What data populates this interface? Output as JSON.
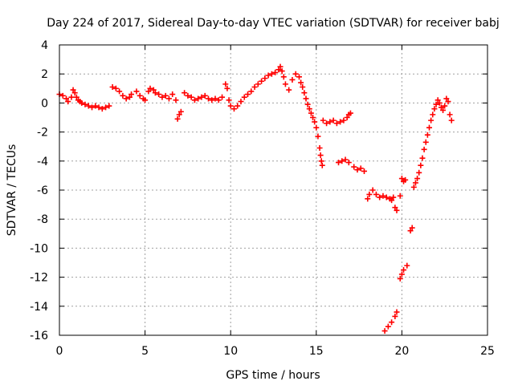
{
  "chart_data": {
    "type": "scatter",
    "title": "Day 224 of 2017, Sidereal Day-to-day VTEC variation (SDTVAR) for receiver babj",
    "xlabel": "GPS time / hours",
    "ylabel": "SDTVAR / TECUs",
    "xlim": [
      0,
      25
    ],
    "ylim": [
      -16,
      4
    ],
    "xticks": [
      "0",
      "5",
      "10",
      "15",
      "20",
      "25"
    ],
    "yticks": [
      "4",
      "2",
      "0",
      "-2",
      "-4",
      "-6",
      "-8",
      "-10",
      "-12",
      "-14",
      "-16"
    ],
    "grid": true,
    "marker": "+",
    "color": "#ff0000",
    "series": [
      {
        "name": "SDTVAR",
        "x": [
          0.0,
          0.2,
          0.4,
          0.5,
          0.7,
          0.8,
          0.9,
          1.0,
          1.1,
          1.2,
          1.3,
          1.5,
          1.7,
          1.9,
          2.1,
          2.3,
          2.5,
          2.7,
          2.9,
          3.1,
          3.3,
          3.5,
          3.7,
          3.9,
          4.1,
          4.2,
          4.5,
          4.7,
          4.9,
          5.0,
          5.2,
          5.3,
          5.5,
          5.6,
          5.8,
          6.0,
          6.2,
          6.4,
          6.6,
          6.8,
          6.9,
          7.0,
          7.1,
          7.3,
          7.5,
          7.7,
          7.9,
          8.1,
          8.3,
          8.5,
          8.7,
          8.9,
          9.1,
          9.3,
          9.5,
          9.7,
          9.8,
          9.9,
          10.0,
          10.2,
          10.4,
          10.6,
          10.8,
          11.0,
          11.2,
          11.4,
          11.6,
          11.8,
          12.0,
          12.2,
          12.4,
          12.6,
          12.8,
          12.9,
          13.0,
          13.1,
          13.2,
          13.4,
          13.6,
          13.8,
          14.0,
          14.1,
          14.2,
          14.3,
          14.4,
          14.5,
          14.6,
          14.7,
          14.8,
          14.9,
          15.0,
          15.1,
          15.2,
          15.25,
          15.3,
          15.35,
          15.4,
          15.6,
          15.8,
          16.0,
          16.2,
          16.4,
          16.6,
          16.8,
          16.9,
          17.0,
          16.3,
          16.5,
          16.7,
          16.9,
          17.2,
          17.4,
          17.6,
          17.8,
          18.0,
          18.1,
          18.3,
          18.5,
          18.7,
          18.9,
          19.1,
          19.3,
          19.4,
          19.5,
          19.6,
          19.7,
          19.9,
          20.0,
          20.1,
          20.2,
          19.9,
          20.0,
          20.1,
          20.3,
          20.5,
          20.6,
          20.7,
          20.8,
          20.9,
          21.0,
          21.1,
          21.2,
          21.3,
          21.4,
          21.5,
          21.6,
          21.7,
          21.8,
          21.9,
          22.0,
          22.1,
          22.2,
          22.3,
          22.4,
          22.5,
          22.6,
          22.7,
          22.8,
          22.9,
          19.0,
          19.2,
          19.4,
          19.6,
          19.7
        ],
        "y": [
          0.6,
          0.5,
          0.3,
          0.1,
          0.4,
          0.9,
          0.7,
          0.4,
          0.2,
          0.1,
          0.0,
          -0.1,
          -0.2,
          -0.3,
          -0.2,
          -0.3,
          -0.4,
          -0.3,
          -0.2,
          1.1,
          1.0,
          0.8,
          0.5,
          0.3,
          0.4,
          0.6,
          0.8,
          0.5,
          0.3,
          0.2,
          0.8,
          1.0,
          0.9,
          0.7,
          0.6,
          0.4,
          0.5,
          0.3,
          0.6,
          0.2,
          -1.1,
          -0.8,
          -0.6,
          0.7,
          0.5,
          0.4,
          0.2,
          0.3,
          0.4,
          0.5,
          0.3,
          0.2,
          0.3,
          0.2,
          0.4,
          1.3,
          1.0,
          0.2,
          -0.2,
          -0.4,
          -0.2,
          0.1,
          0.4,
          0.6,
          0.8,
          1.1,
          1.3,
          1.5,
          1.7,
          1.9,
          2.0,
          2.1,
          2.3,
          2.5,
          2.2,
          1.8,
          1.3,
          0.9,
          1.6,
          2.0,
          1.8,
          1.4,
          1.1,
          0.7,
          0.3,
          -0.1,
          -0.4,
          -0.7,
          -1.0,
          -1.3,
          -1.7,
          -2.3,
          -3.1,
          -3.6,
          -4.0,
          -4.3,
          -1.2,
          -1.4,
          -1.3,
          -1.2,
          -1.4,
          -1.3,
          -1.2,
          -1.0,
          -0.8,
          -0.7,
          -4.1,
          -4.0,
          -3.9,
          -4.1,
          -4.4,
          -4.6,
          -4.5,
          -4.7,
          -6.6,
          -6.3,
          -6.0,
          -6.3,
          -6.5,
          -6.4,
          -6.5,
          -6.6,
          -6.7,
          -6.5,
          -7.2,
          -7.4,
          -6.4,
          -5.2,
          -5.4,
          -5.3,
          -12.1,
          -11.8,
          -11.5,
          -11.2,
          -8.8,
          -8.6,
          -5.8,
          -5.5,
          -5.2,
          -4.8,
          -4.3,
          -3.8,
          -3.2,
          -2.7,
          -2.2,
          -1.7,
          -1.2,
          -0.8,
          -0.4,
          -0.1,
          0.2,
          0.0,
          -0.3,
          -0.5,
          -0.2,
          0.3,
          0.1,
          -0.8,
          -1.2,
          -15.7,
          -15.4,
          -15.1,
          -14.7,
          -14.4
        ]
      }
    ]
  }
}
